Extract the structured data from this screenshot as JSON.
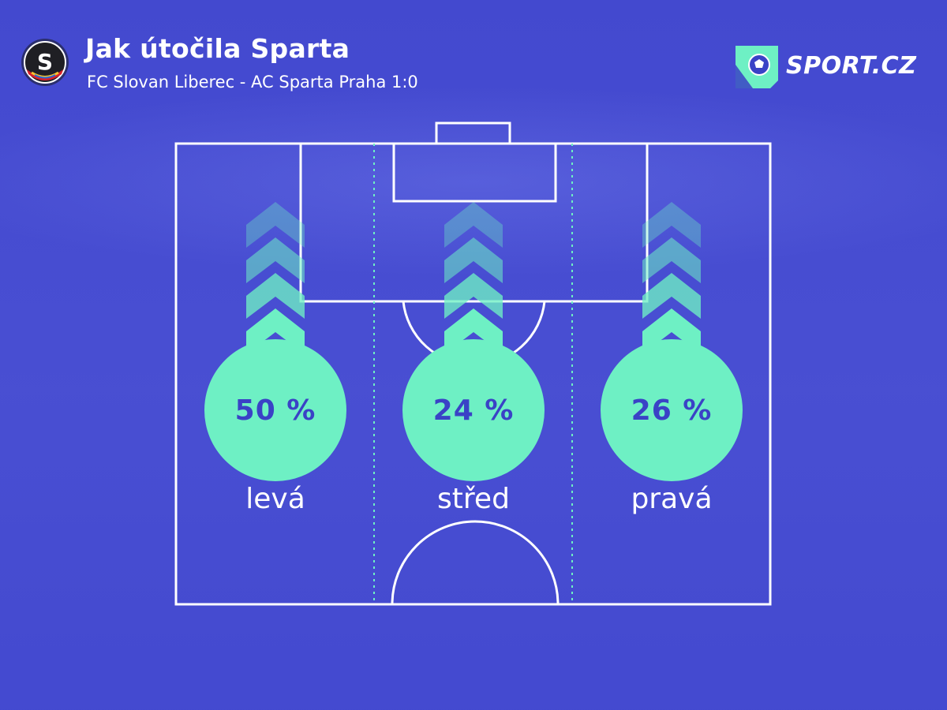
{
  "header": {
    "title": "Jak útočila Sparta",
    "subtitle": "FC Slovan Liberec - AC Sparta Praha 1:0",
    "brand": "SPORT.CZ",
    "team_logo_letter": "S"
  },
  "colors": {
    "background": "#4349cf",
    "accent": "#6ef0c4",
    "value_text": "#3a42c6",
    "pitch_lines": "#ffffff"
  },
  "chart_data": {
    "type": "pie",
    "title": "Jak útočila Sparta",
    "subtitle": "FC Slovan Liberec - AC Sparta Praha 1:0",
    "unit": "%",
    "categories": [
      "levá",
      "střed",
      "pravá"
    ],
    "values": [
      50,
      24,
      26
    ],
    "labels": [
      "50 %",
      "24 %",
      "26 %"
    ]
  }
}
